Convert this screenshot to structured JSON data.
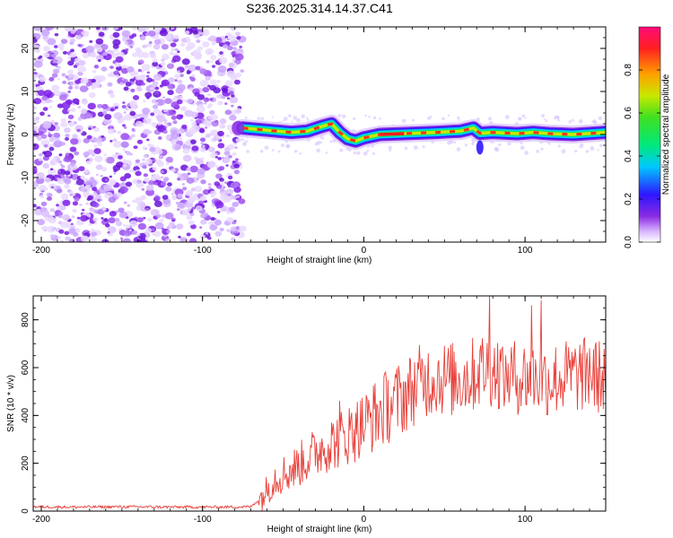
{
  "title": "S236.2025.314.14.37.C41",
  "chart_data": [
    {
      "type": "heatmap",
      "name": "spectrogram",
      "xlabel": "Height of straight line (km)",
      "ylabel": "Frequency (Hz)",
      "xlim": [
        -205,
        150
      ],
      "ylim": [
        -25,
        25
      ],
      "x_ticks": [
        -200,
        -100,
        0,
        100
      ],
      "y_ticks": [
        -20,
        -10,
        0,
        10,
        20
      ],
      "noise_region_x": [
        -205,
        -75
      ],
      "signal_start_x": -75,
      "colorbar": {
        "label": "Normalized spectral amplitude",
        "range": [
          0.0,
          1.0
        ],
        "ticks": [
          0.0,
          0.2,
          0.4,
          0.6,
          0.8
        ]
      },
      "ridge": [
        {
          "x": -75,
          "y": 1.5
        },
        {
          "x": -60,
          "y": 1.0
        },
        {
          "x": -45,
          "y": 0.5
        },
        {
          "x": -35,
          "y": 0.8
        },
        {
          "x": -25,
          "y": 2.0
        },
        {
          "x": -20,
          "y": 2.5
        },
        {
          "x": -15,
          "y": 0.5
        },
        {
          "x": -10,
          "y": -1.0
        },
        {
          "x": -5,
          "y": -1.5
        },
        {
          "x": 0,
          "y": -0.8
        },
        {
          "x": 10,
          "y": 0.0
        },
        {
          "x": 25,
          "y": 0.2
        },
        {
          "x": 45,
          "y": 0.5
        },
        {
          "x": 60,
          "y": 0.8
        },
        {
          "x": 68,
          "y": 1.5
        },
        {
          "x": 72,
          "y": 0.3
        },
        {
          "x": 80,
          "y": 0.5
        },
        {
          "x": 95,
          "y": 0.2
        },
        {
          "x": 105,
          "y": 0.5
        },
        {
          "x": 115,
          "y": 0.2
        },
        {
          "x": 130,
          "y": 0.0
        },
        {
          "x": 150,
          "y": 0.5
        }
      ]
    },
    {
      "type": "line",
      "name": "snr",
      "xlabel": "Height of straight line (km)",
      "ylabel": "SNR (10 * v/v)",
      "xlim": [
        -205,
        150
      ],
      "ylim": [
        0,
        900
      ],
      "x_ticks": [
        -200,
        -100,
        0,
        100
      ],
      "y_ticks": [
        0,
        200,
        400,
        600,
        800
      ],
      "color": "#e8403a",
      "x": [
        -205,
        -180,
        -150,
        -120,
        -90,
        -70,
        -63,
        -55,
        -45,
        -35,
        -25,
        -15,
        -5,
        5,
        15,
        25,
        35,
        45,
        55,
        65,
        75,
        85,
        95,
        105,
        115,
        125,
        135,
        150
      ],
      "values": [
        18,
        17,
        18,
        17,
        17,
        18,
        60,
        140,
        170,
        220,
        270,
        300,
        340,
        390,
        440,
        480,
        540,
        560,
        550,
        560,
        600,
        580,
        560,
        560,
        550,
        560,
        570,
        560
      ],
      "spikes": [
        {
          "x": -15,
          "y": 460
        },
        {
          "x": -5,
          "y": 410
        },
        {
          "x": 72,
          "y": 670
        },
        {
          "x": 78,
          "y": 900
        },
        {
          "x": 88,
          "y": 650
        },
        {
          "x": 110,
          "y": 880
        },
        {
          "x": 104,
          "y": 860
        },
        {
          "x": 140,
          "y": 680
        }
      ]
    }
  ]
}
